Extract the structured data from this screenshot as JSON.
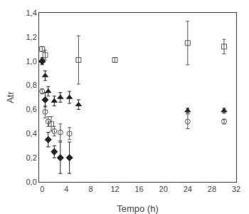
{
  "chart_data": {
    "type": "scatter",
    "xlabel": "Tempo (h)",
    "ylabel": "Atr",
    "xlim": [
      -0.5,
      32
    ],
    "ylim": [
      0.0,
      1.4
    ],
    "xticks": [
      0,
      4,
      8,
      12,
      16,
      20,
      24,
      28,
      32
    ],
    "yticks": [
      {
        "value": 0.0,
        "label": "0,0"
      },
      {
        "value": 0.2,
        "label": "0,2"
      },
      {
        "value": 0.4,
        "label": "0,4"
      },
      {
        "value": 0.6,
        "label": "0,6"
      },
      {
        "value": 0.8,
        "label": "0,8"
      },
      {
        "value": 1.0,
        "label": "1,0"
      },
      {
        "value": 1.2,
        "label": "1,2"
      },
      {
        "value": 1.4,
        "label": "1,4"
      }
    ],
    "grid": false,
    "series": [
      {
        "x": [
          0,
          0.5,
          1.5,
          6.0,
          12,
          24,
          30
        ],
        "values": [
          1.1,
          1.05,
          0.48,
          1.01,
          1.01,
          1.15,
          1.12
        ],
        "yerr": [
          0.02,
          0.04,
          0.06,
          0.2,
          0.02,
          0.18,
          0.06
        ],
        "color": "#555555",
        "marker": "square-open"
      },
      {
        "x": [
          0,
          0.5,
          1.0,
          2.0,
          3.0,
          4.5,
          24,
          30
        ],
        "values": [
          0.75,
          0.58,
          0.5,
          0.42,
          0.41,
          0.4,
          0.5,
          0.5
        ],
        "yerr": [
          0.02,
          0.05,
          0.04,
          0.04,
          0.07,
          0.05,
          0.06,
          0.02
        ],
        "color": "#555555",
        "marker": "circle-open"
      },
      {
        "x": [
          0,
          0.5,
          1.0,
          2.0,
          3.0,
          4.5,
          6.0,
          24,
          30
        ],
        "values": [
          1.0,
          0.88,
          0.75,
          0.67,
          0.7,
          0.7,
          0.64,
          0.59,
          0.59
        ],
        "yerr": [
          0.02,
          0.04,
          0.04,
          0.04,
          0.04,
          0.05,
          0.04,
          0.02,
          0.02
        ],
        "color": "#222222",
        "marker": "triangle-up"
      },
      {
        "x": [
          0,
          0.5,
          1.0,
          2.0,
          3.0,
          4.5
        ],
        "values": [
          1.0,
          0.68,
          0.35,
          0.25,
          0.2,
          0.2
        ],
        "yerr": [
          0.03,
          0.06,
          0.06,
          0.05,
          0.13,
          0.13
        ],
        "color": "#222222",
        "marker": "diamond"
      }
    ]
  }
}
